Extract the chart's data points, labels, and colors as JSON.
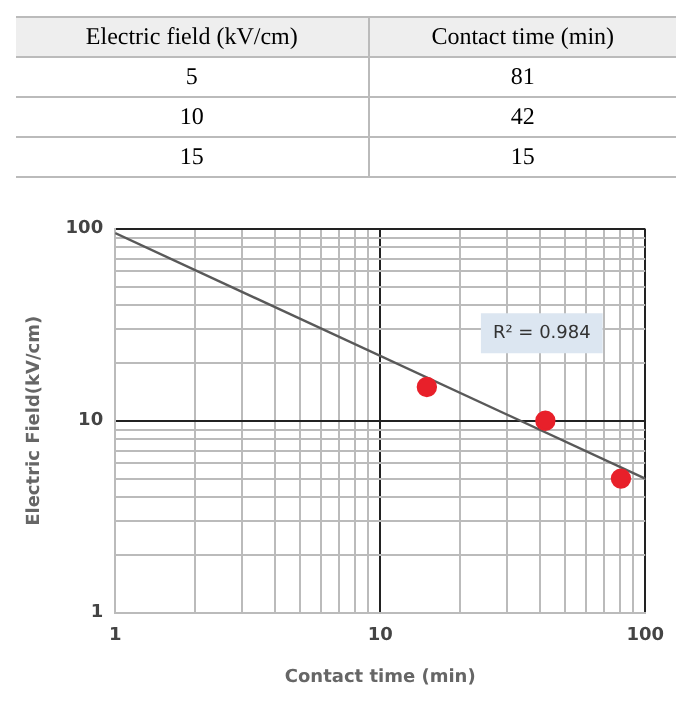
{
  "chart_data": [
    {
      "type": "other",
      "annotations": [
        "Electric field (kV/cm)",
        "Contact time (min)",
        "5",
        "81",
        "10",
        "42",
        "15",
        "15"
      ]
    },
    {
      "type": "scatter",
      "xlabel": "Contact time (min)",
      "ylabel": "Electric Field(kV/cm)",
      "annotations": [
        "R² = 0.984"
      ],
      "series": [
        {
          "type": "scatter",
          "color": "#e8202a",
          "x": [
            81,
            42,
            15
          ],
          "values": [
            5,
            10,
            15
          ],
          "marker": "circle"
        },
        {
          "type": "line",
          "color": "#595959",
          "x": [
            1,
            100
          ],
          "values": [
            95,
            5
          ],
          "marker": "none",
          "line_style": "solid"
        }
      ],
      "log": "xy",
      "xlim": [
        1,
        100
      ],
      "ylim": [
        1,
        100
      ],
      "xticks": [
        1,
        {
          "value": 2,
          "label": null
        },
        {
          "value": 3,
          "label": null
        },
        {
          "value": 4,
          "label": null
        },
        {
          "value": 5,
          "label": null
        },
        {
          "value": 6,
          "label": null
        },
        {
          "value": 7,
          "label": null
        },
        {
          "value": 8,
          "label": null
        },
        {
          "value": 9,
          "label": null
        },
        10,
        {
          "value": 20,
          "label": null
        },
        {
          "value": 30,
          "label": null
        },
        {
          "value": 40,
          "label": null
        },
        {
          "value": 50,
          "label": null
        },
        {
          "value": 60,
          "label": null
        },
        {
          "value": 70,
          "label": null
        },
        {
          "value": 80,
          "label": null
        },
        {
          "value": 90,
          "label": null
        },
        100
      ],
      "yticks": [
        1,
        {
          "value": 2,
          "label": null
        },
        {
          "value": 3,
          "label": null
        },
        {
          "value": 4,
          "label": null
        },
        {
          "value": 5,
          "label": null
        },
        {
          "value": 6,
          "label": null
        },
        {
          "value": 7,
          "label": null
        },
        {
          "value": 8,
          "label": null
        },
        {
          "value": 9,
          "label": null
        },
        10,
        {
          "value": 20,
          "label": null
        },
        {
          "value": 30,
          "label": null
        },
        {
          "value": 40,
          "label": null
        },
        {
          "value": 50,
          "label": null
        },
        {
          "value": 60,
          "label": null
        },
        {
          "value": 70,
          "label": null
        },
        {
          "value": 80,
          "label": null
        },
        {
          "value": 90,
          "label": null
        },
        100
      ],
      "grid": true,
      "legend": false
    }
  ]
}
